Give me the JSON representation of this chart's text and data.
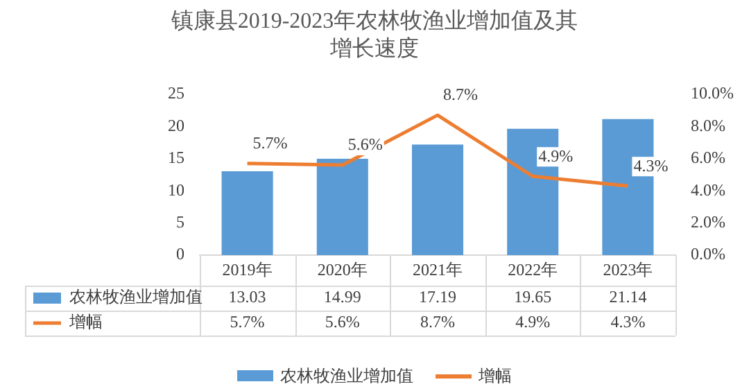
{
  "chart_data": {
    "type": "bar",
    "title": "镇康县2019-2023年农林牧渔业增加值及其增长速度",
    "categories": [
      "2019年",
      "2020年",
      "2021年",
      "2022年",
      "2023年"
    ],
    "series": [
      {
        "name": "农林牧渔业增加值",
        "color": "#5b9bd5",
        "values": [
          13.03,
          14.99,
          17.19,
          19.65,
          21.14
        ],
        "value_labels": [
          "13.03",
          "14.99",
          "17.19",
          "19.65",
          "21.14"
        ]
      },
      {
        "name": "增幅",
        "type": "line",
        "axis": "y2",
        "color": "#ed7d31",
        "values": [
          5.7,
          5.6,
          8.7,
          4.9,
          4.3
        ],
        "value_labels": [
          "5.7%",
          "5.6%",
          "8.7%",
          "4.9%",
          "4.3%"
        ]
      }
    ],
    "ylim": [
      0,
      25
    ],
    "yticks": [
      0,
      5,
      10,
      15,
      20,
      25
    ],
    "y2lim": [
      0,
      10
    ],
    "y2ticks": [
      {
        "value": 0,
        "label": "0.0%"
      },
      {
        "value": 2,
        "label": "2.0%"
      },
      {
        "value": 4,
        "label": "4.0%"
      },
      {
        "value": 6,
        "label": "6.0%"
      },
      {
        "value": 8,
        "label": "8.0%"
      },
      {
        "value": 10,
        "label": "10.0%"
      }
    ],
    "marker": "none",
    "legend": "bottom"
  }
}
